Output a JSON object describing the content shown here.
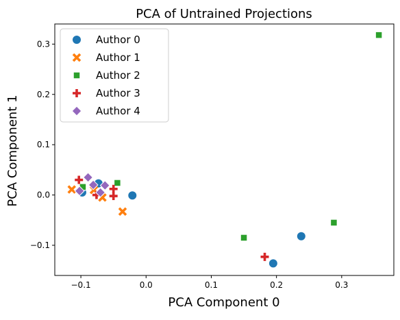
{
  "chart_data": {
    "type": "scatter",
    "title": "PCA of Untrained Projections",
    "xlabel": "PCA Component 0",
    "ylabel": "PCA Component 1",
    "xlim": [
      -0.14,
      0.38
    ],
    "ylim": [
      -0.16,
      0.34
    ],
    "xticks": [
      -0.1,
      0.0,
      0.1,
      0.2,
      0.3
    ],
    "xtick_labels": [
      "−0.1",
      "0.0",
      "0.1",
      "0.2",
      "0.3"
    ],
    "yticks": [
      -0.1,
      0.0,
      0.1,
      0.2,
      0.3
    ],
    "ytick_labels": [
      "−0.1",
      "0.0",
      "0.1",
      "0.2",
      "0.3"
    ],
    "grid": false,
    "legend": {
      "position": "top-left"
    },
    "series": [
      {
        "name": "Author 0",
        "color": "#1f77b4",
        "marker": "circle",
        "points": [
          {
            "x": -0.021,
            "y": -0.001
          },
          {
            "x": -0.073,
            "y": 0.023
          },
          {
            "x": -0.098,
            "y": 0.005
          },
          {
            "x": 0.238,
            "y": -0.082
          },
          {
            "x": 0.195,
            "y": -0.136
          }
        ]
      },
      {
        "name": "Author 1",
        "color": "#ff7f0e",
        "marker": "x",
        "points": [
          {
            "x": -0.114,
            "y": 0.011
          },
          {
            "x": -0.08,
            "y": 0.01
          },
          {
            "x": -0.067,
            "y": -0.005
          },
          {
            "x": -0.036,
            "y": -0.033
          }
        ]
      },
      {
        "name": "Author 2",
        "color": "#2ca02c",
        "marker": "square",
        "points": [
          {
            "x": -0.097,
            "y": 0.016
          },
          {
            "x": -0.044,
            "y": 0.024
          },
          {
            "x": 0.15,
            "y": -0.085
          },
          {
            "x": 0.288,
            "y": -0.055
          },
          {
            "x": 0.357,
            "y": 0.318
          }
        ]
      },
      {
        "name": "Author 3",
        "color": "#d62728",
        "marker": "plus",
        "points": [
          {
            "x": -0.103,
            "y": 0.03
          },
          {
            "x": -0.076,
            "y": 0.0
          },
          {
            "x": -0.05,
            "y": 0.012
          },
          {
            "x": -0.05,
            "y": -0.002
          },
          {
            "x": 0.182,
            "y": -0.123
          }
        ]
      },
      {
        "name": "Author 4",
        "color": "#9467bd",
        "marker": "diamond",
        "points": [
          {
            "x": -0.089,
            "y": 0.035
          },
          {
            "x": -0.081,
            "y": 0.02
          },
          {
            "x": -0.063,
            "y": 0.019
          },
          {
            "x": -0.07,
            "y": 0.005
          },
          {
            "x": -0.102,
            "y": 0.008
          }
        ]
      }
    ]
  }
}
